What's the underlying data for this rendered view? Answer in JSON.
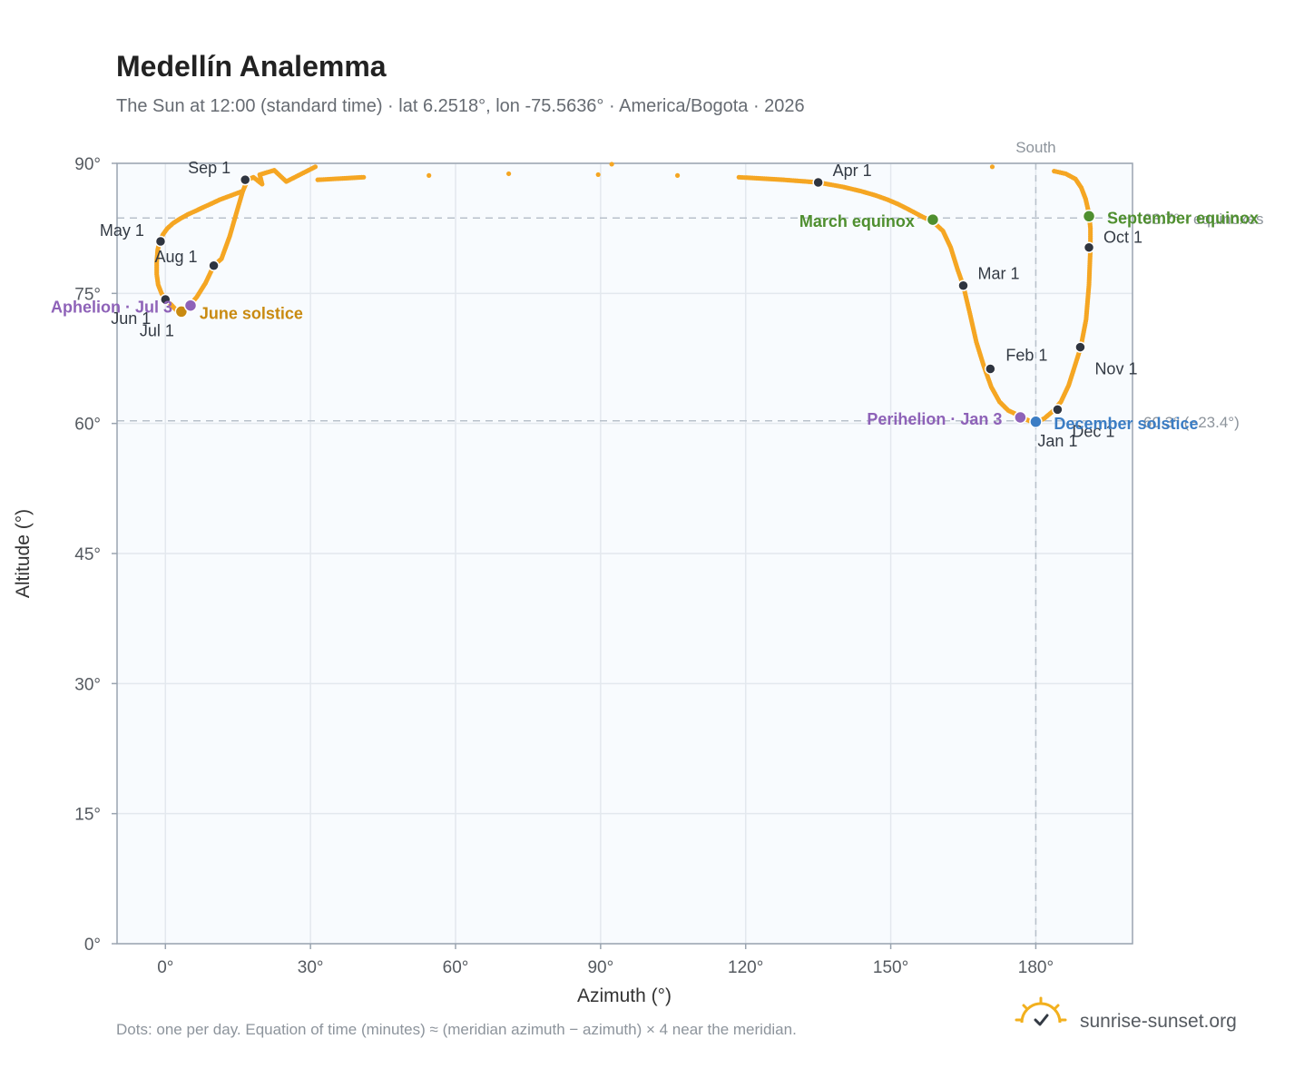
{
  "chart_data": {
    "type": "scatter",
    "title": "Medellín Analemma",
    "subtitle": "The Sun at 12:00 (standard time) · lat 6.2518°, lon -75.5636° · America/Bogota · 2026",
    "xlabel": "Azimuth (°)",
    "ylabel": "Altitude (°)",
    "xlim": [
      -10,
      200
    ],
    "ylim": [
      0,
      90
    ],
    "x_ticks": [
      0,
      30,
      60,
      90,
      120,
      150,
      180
    ],
    "x_tick_labels": [
      "0°",
      "30°",
      "60°",
      "90°",
      "120°",
      "150°",
      "180°"
    ],
    "y_ticks": [
      0,
      15,
      30,
      45,
      60,
      75,
      90
    ],
    "y_tick_labels": [
      "0°",
      "15°",
      "30°",
      "45°",
      "60°",
      "75°",
      "90°"
    ],
    "grid": true,
    "series_color": "#f5a623",
    "daily_points": [
      [
        180.5,
        60.2
      ],
      [
        181.8,
        60.6
      ],
      [
        183.5,
        61.4
      ],
      [
        185.2,
        62.5
      ],
      [
        186.8,
        64.4
      ],
      [
        188.0,
        66.5
      ],
      [
        189.3,
        68.8
      ],
      [
        190.4,
        72.0
      ],
      [
        191.0,
        76.0
      ],
      [
        191.3,
        80.2
      ],
      [
        191.3,
        82.5
      ],
      [
        191.0,
        84.2
      ],
      [
        190.3,
        85.9
      ],
      [
        189.4,
        87.2
      ],
      [
        188.2,
        88.2
      ],
      [
        186.2,
        88.8
      ],
      [
        183.8,
        89.1
      ],
      [
        171.0,
        89.6
      ],
      [
        92.3,
        89.9
      ],
      [
        31.0,
        89.6
      ],
      [
        25.0,
        87.9
      ],
      [
        22.5,
        89.2
      ],
      [
        19.5,
        88.7
      ],
      [
        20.0,
        87.6
      ],
      [
        18.2,
        88.4
      ],
      [
        17.0,
        88.1
      ],
      [
        16.0,
        86.8
      ],
      [
        14.8,
        84.5
      ],
      [
        13.3,
        81.6
      ],
      [
        11.6,
        79.0
      ],
      [
        10.0,
        78.2
      ],
      [
        8.3,
        76.2
      ],
      [
        6.5,
        74.6
      ],
      [
        5.3,
        73.8
      ],
      [
        4.3,
        73.3
      ],
      [
        3.2,
        72.9
      ],
      [
        2.2,
        73.1
      ],
      [
        1.2,
        73.7
      ],
      [
        0.1,
        74.2
      ],
      [
        -0.8,
        75.0
      ],
      [
        -1.5,
        76.0
      ],
      [
        -1.8,
        77.2
      ],
      [
        -1.8,
        78.6
      ],
      [
        -1.6,
        80.0
      ],
      [
        -1.2,
        81.0
      ],
      [
        -0.5,
        81.8
      ],
      [
        0.4,
        82.5
      ],
      [
        1.6,
        83.1
      ],
      [
        3.0,
        83.6
      ],
      [
        4.6,
        84.1
      ],
      [
        6.2,
        84.5
      ],
      [
        7.7,
        84.9
      ],
      [
        9.3,
        85.3
      ],
      [
        11.2,
        85.8
      ],
      [
        13.6,
        86.3
      ],
      [
        16.0,
        86.8
      ],
      [
        31.5,
        88.1
      ],
      [
        41.0,
        88.4
      ],
      [
        54.5,
        88.6
      ],
      [
        71.0,
        88.8
      ],
      [
        89.5,
        88.7
      ],
      [
        105.9,
        88.6
      ],
      [
        118.6,
        88.4
      ],
      [
        127.9,
        88.1
      ],
      [
        135.0,
        87.8
      ],
      [
        140.0,
        87.3
      ],
      [
        143.8,
        86.8
      ],
      [
        146.9,
        86.3
      ],
      [
        149.4,
        85.8
      ],
      [
        151.5,
        85.3
      ],
      [
        153.3,
        84.8
      ],
      [
        155.0,
        84.3
      ],
      [
        156.7,
        83.8
      ],
      [
        158.7,
        83.3
      ],
      [
        160.8,
        82.2
      ],
      [
        162.4,
        80.3
      ],
      [
        163.8,
        77.8
      ],
      [
        165.0,
        75.9
      ],
      [
        166.4,
        72.6
      ],
      [
        167.7,
        69.4
      ],
      [
        169.2,
        66.7
      ],
      [
        170.8,
        64.2
      ],
      [
        172.5,
        62.5
      ],
      [
        174.3,
        61.5
      ],
      [
        176.2,
        61.0
      ],
      [
        177.0,
        60.7
      ],
      [
        178.7,
        60.3
      ],
      [
        180.0,
        60.2
      ]
    ],
    "months": [
      {
        "label": "Jan 1",
        "az": 180.0,
        "alt": 60.2
      },
      {
        "label": "Feb 1",
        "az": 170.6,
        "alt": 66.3
      },
      {
        "label": "Mar 1",
        "az": 165.0,
        "alt": 75.9
      },
      {
        "label": "Apr 1",
        "az": 135.0,
        "alt": 87.8
      },
      {
        "label": "May 1",
        "az": -1.0,
        "alt": 81.0
      },
      {
        "label": "Jun 1",
        "az": 0.0,
        "alt": 74.3
      },
      {
        "label": "Jul 1",
        "az": 3.3,
        "alt": 72.9
      },
      {
        "label": "Aug 1",
        "az": 10.0,
        "alt": 78.2
      },
      {
        "label": "Sep 1",
        "az": 16.5,
        "alt": 88.1
      },
      {
        "label": "Oct 1",
        "az": 191.0,
        "alt": 80.3
      },
      {
        "label": "Nov 1",
        "az": 189.2,
        "alt": 68.8
      },
      {
        "label": "Dec 1",
        "az": 184.5,
        "alt": 61.6
      }
    ],
    "events": [
      {
        "label": "March equinox",
        "az": 158.7,
        "alt": 83.5,
        "color": "#4f8f2f"
      },
      {
        "label": "September equinox",
        "az": 191.0,
        "alt": 83.9,
        "color": "#4f8f2f"
      },
      {
        "label": "June solstice",
        "az": 3.3,
        "alt": 72.9,
        "color": "#c98a10"
      },
      {
        "label": "December solstice",
        "az": 180.0,
        "alt": 60.2,
        "color": "#3b7dc4"
      },
      {
        "label": "Aphelion · Jul 3",
        "az": 5.2,
        "alt": 73.6,
        "color": "#8e62b8"
      },
      {
        "label": "Perihelion · Jan 3",
        "az": 176.8,
        "alt": 60.7,
        "color": "#8e62b8"
      }
    ],
    "reference_lines": {
      "south_azimuth": 180,
      "south_label": "South",
      "equinox_altitude": 83.7,
      "equinox_label": "83.7° · equinoxes",
      "dec_solstice_altitude": 60.3,
      "dec_solstice_label": "60.3° (−23.4°)"
    }
  },
  "footer": {
    "note": "Dots: one per day. Equation of time (minutes) ≈ (meridian azimuth − azimuth) × 4 near the meridian.",
    "brand": "sunrise-sunset.org"
  }
}
